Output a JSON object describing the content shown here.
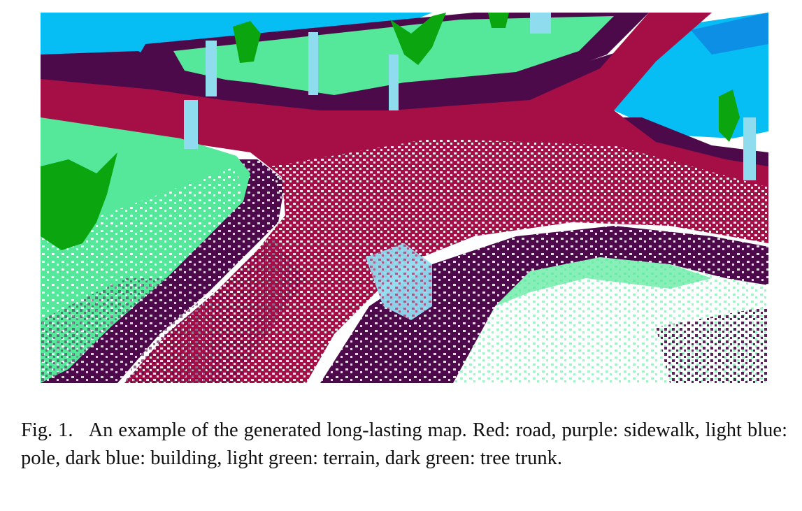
{
  "figure": {
    "label": "Fig. 1.",
    "caption": "An example of the generated long-lasting map. Red: road, purple: sidewalk, light blue: pole, dark blue: building, light green: terrain, dark green: tree trunk."
  },
  "colors": {
    "road": "#a50f46",
    "sidewalk": "#4d0a4a",
    "pole": "#8fdcef",
    "building": "#06bdf4",
    "terrain": "#56e89a",
    "tree_trunk": "#0aa50f",
    "background": "#ffffff"
  }
}
